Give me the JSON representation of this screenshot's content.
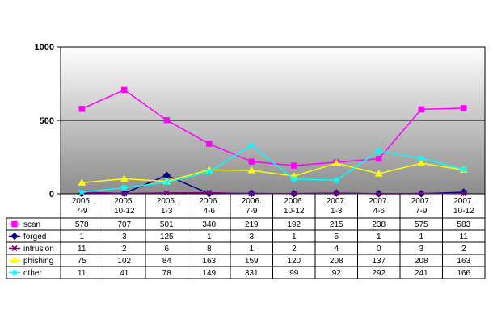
{
  "chart_data": {
    "type": "line",
    "categories": [
      {
        "line1": "2005.",
        "line2": "7-9"
      },
      {
        "line1": "2005.",
        "line2": "10-12"
      },
      {
        "line1": "2006.",
        "line2": "1-3"
      },
      {
        "line1": "2006.",
        "line2": "4-6"
      },
      {
        "line1": "2006.",
        "line2": "7-9"
      },
      {
        "line1": "2006.",
        "line2": "10-12"
      },
      {
        "line1": "2007.",
        "line2": "1-3"
      },
      {
        "line1": "2007.",
        "line2": "4-6"
      },
      {
        "line1": "2007.",
        "line2": "7-9"
      },
      {
        "line1": "2007.",
        "line2": "10-12"
      }
    ],
    "ylim": [
      0,
      1000
    ],
    "yticks": [
      "0",
      "500",
      "1000"
    ],
    "grid": true,
    "legend": "data-table-below",
    "series": [
      {
        "name": "scan",
        "color": "#ff00ff",
        "marker": "square",
        "values": [
          578,
          707,
          501,
          340,
          219,
          192,
          215,
          238,
          575,
          583
        ]
      },
      {
        "name": "forged",
        "color": "#000080",
        "marker": "diamond",
        "values": [
          1,
          3,
          125,
          1,
          3,
          1,
          5,
          1,
          1,
          11
        ]
      },
      {
        "name": "intrusion",
        "color": "#800080",
        "marker": "cross",
        "values": [
          11,
          2,
          6,
          8,
          1,
          2,
          4,
          0,
          3,
          2
        ]
      },
      {
        "name": "phishing",
        "color": "#ffff00",
        "marker": "triangle",
        "values": [
          75,
          102,
          84,
          163,
          159,
          120,
          208,
          137,
          208,
          163
        ]
      },
      {
        "name": "other",
        "color": "#00ffff",
        "marker": "star",
        "values": [
          11,
          41,
          78,
          149,
          331,
          99,
          92,
          292,
          241,
          166
        ]
      }
    ]
  }
}
